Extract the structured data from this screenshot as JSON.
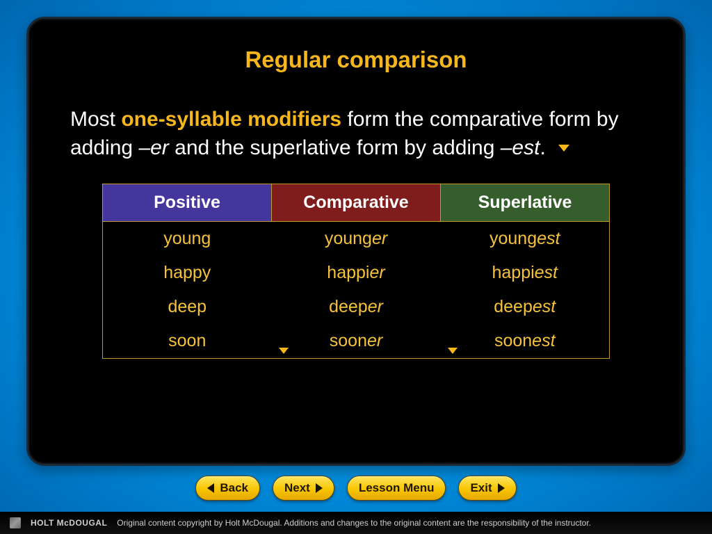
{
  "title": "Regular comparison",
  "body": {
    "pre": "Most ",
    "accent": "one-syllable modifiers",
    "mid1": " form the comparative form by adding ",
    "er": "–er",
    "mid2": " and the superlative form by adding ",
    "est": "–est",
    "end": "."
  },
  "table": {
    "headers": {
      "positive": "Positive",
      "comparative": "Comparative",
      "superlative": "Superlative"
    },
    "header_colors": {
      "positive": "#45369d",
      "comparative": "#7f1c1c",
      "superlative": "#365e2c"
    },
    "rows": [
      {
        "p": "young",
        "c_root": "young",
        "c_end": "er",
        "s_root": "young",
        "s_end": "est"
      },
      {
        "p": "happy",
        "c_root": "happi",
        "c_end": "er",
        "s_root": "happi",
        "s_end": "est"
      },
      {
        "p": "deep",
        "c_root": "deep",
        "c_end": "er",
        "s_root": "deep",
        "s_end": "est"
      },
      {
        "p": "soon",
        "c_root": "soon",
        "c_end": "er",
        "s_root": "soon",
        "s_end": "est"
      }
    ],
    "cell_text_color": "#f5c23a",
    "border_color": "#c49a2e"
  },
  "nav": {
    "back": "Back",
    "next": "Next",
    "lesson": "Lesson Menu",
    "exit": "Exit"
  },
  "footer": {
    "brand": "HOLT McDOUGAL",
    "copyright": "Original content copyright by Holt McDougal. Additions and changes to the original content are the responsibility of the instructor."
  },
  "colors": {
    "title": "#f5b71c",
    "body_text": "#ffffff",
    "background_black": "#000000",
    "button_gradient_top": "#ffe560",
    "button_gradient_bottom": "#e6a700"
  },
  "typography": {
    "title_fontsize": 33,
    "body_fontsize": 30,
    "table_fontsize": 25,
    "nav_fontsize": 17
  }
}
